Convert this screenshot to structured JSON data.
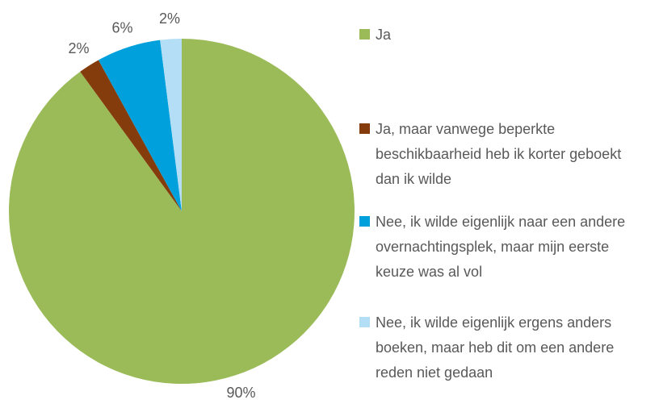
{
  "chart_data": {
    "type": "pie",
    "categories": [
      "Ja",
      "Ja, maar vanwege beperkte beschikbaarheid heb ik korter geboekt dan ik wilde",
      "Nee, ik wilde eigenlijk naar een andere overnachtingsplek, maar mijn eerste keuze was al vol",
      "Nee, ik wilde eigenlijk ergens anders boeken, maar heb dit om een andere reden niet gedaan"
    ],
    "values": [
      90,
      2,
      6,
      2
    ],
    "value_labels": [
      "90%",
      "2%",
      "6%",
      "2%"
    ],
    "colors": [
      "#9bbb59",
      "#843c0c",
      "#00a0dc",
      "#b3def5"
    ],
    "legend": "right"
  }
}
